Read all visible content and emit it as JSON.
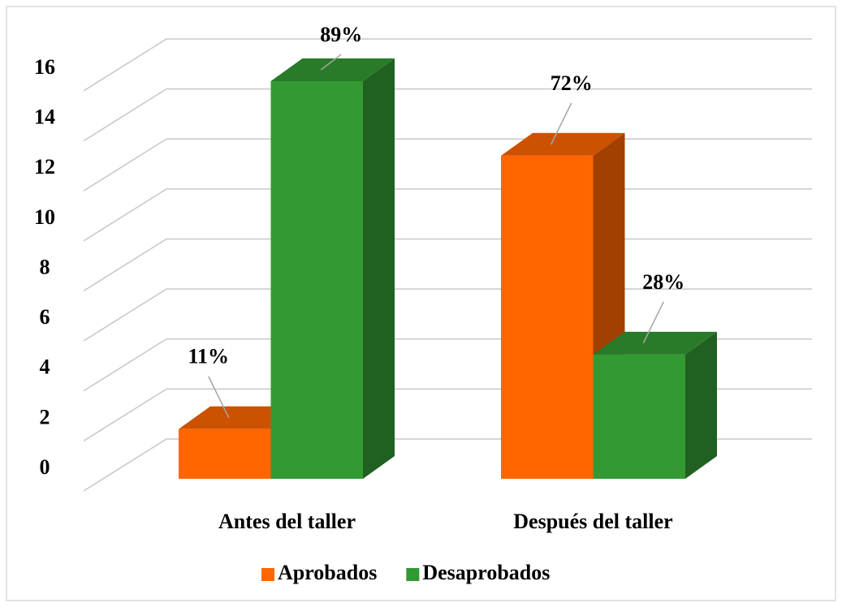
{
  "chart_data": {
    "type": "bar3d",
    "categories": [
      "Antes del taller",
      "Después del taller"
    ],
    "series": [
      {
        "name": "Aprobados",
        "color": "#ff6600",
        "values": [
          2,
          13
        ],
        "data_labels": [
          "11%",
          "72%"
        ]
      },
      {
        "name": "Desaprobados",
        "color": "#339933",
        "values": [
          16,
          5
        ],
        "data_labels": [
          "89%",
          "28%"
        ]
      }
    ],
    "ylim": [
      0,
      16
    ],
    "yticks": [
      0,
      2,
      4,
      6,
      8,
      10,
      12,
      14,
      16
    ],
    "grid": true,
    "legend": "bottom"
  }
}
